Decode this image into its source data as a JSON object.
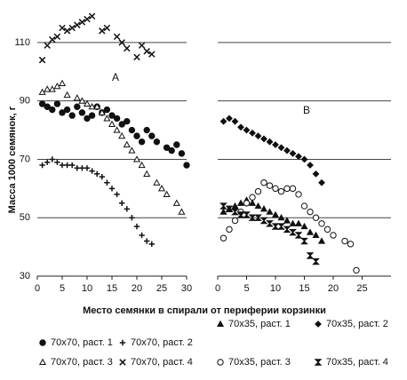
{
  "chart_data": [
    {
      "type": "scatter",
      "panel": "A",
      "y_label": "Масса 1000 семянок, г",
      "x_label": "Место семянки в спирали от периферии корзинки",
      "xlim": [
        0,
        30
      ],
      "xticks": [
        0,
        5,
        10,
        15,
        20,
        25,
        30
      ],
      "ylim": [
        30,
        120
      ],
      "yticks": [
        30,
        50,
        70,
        90,
        110
      ],
      "show_ytick_labels": true,
      "grid": true,
      "series": [
        {
          "name": "70x70, раст. 1",
          "color": "#111",
          "marker": "circle-filled",
          "x": [
            1,
            2,
            3,
            4,
            5,
            6,
            7,
            8,
            9,
            10,
            11,
            12,
            13,
            14,
            15,
            16,
            17,
            18,
            19,
            20,
            21,
            22,
            23,
            24,
            26,
            27,
            28,
            29,
            30
          ],
          "values": [
            89,
            88,
            87,
            89,
            86,
            87,
            85,
            88,
            86,
            84,
            85,
            88,
            86,
            87,
            85,
            84,
            82,
            83,
            80,
            78,
            76,
            80,
            78,
            76,
            74,
            73,
            75,
            72,
            68
          ]
        },
        {
          "name": "70x70, раст. 2",
          "color": "#111",
          "marker": "plus",
          "x": [
            1,
            2,
            3,
            4,
            5,
            6,
            7,
            8,
            9,
            10,
            11,
            12,
            13,
            14,
            15,
            16,
            17,
            18,
            19,
            20,
            21,
            22,
            23
          ],
          "values": [
            68,
            69,
            70,
            69,
            68,
            68,
            68,
            67,
            67,
            67,
            66,
            65,
            64,
            62,
            60,
            58,
            55,
            53,
            50,
            47,
            44,
            42,
            41
          ]
        },
        {
          "name": "70x70, раст. 3",
          "color": "#111",
          "marker": "triangle-open",
          "x": [
            1,
            2,
            3,
            4,
            5,
            6,
            8,
            9,
            10,
            11,
            12,
            13,
            14,
            15,
            16,
            17,
            18,
            19,
            20,
            21,
            22,
            24,
            25,
            26,
            28,
            29
          ],
          "values": [
            93,
            94,
            94,
            95,
            96,
            92,
            91,
            90,
            89,
            88,
            88,
            86,
            84,
            82,
            80,
            78,
            75,
            73,
            70,
            68,
            65,
            62,
            60,
            58,
            55,
            52
          ]
        },
        {
          "name": "70x70, раст. 4",
          "color": "#111",
          "marker": "x",
          "x": [
            1,
            2,
            3,
            4,
            5,
            6,
            7,
            8,
            9,
            10,
            11,
            13,
            14,
            16,
            17,
            18,
            20,
            21,
            22,
            23
          ],
          "values": [
            104,
            109,
            111,
            112,
            115,
            114,
            115,
            116,
            117,
            118,
            119,
            114,
            115,
            112,
            110,
            108,
            105,
            109,
            107,
            106
          ]
        }
      ]
    },
    {
      "type": "scatter",
      "panel": "B",
      "xlim": [
        0,
        30
      ],
      "xticks": [
        0,
        5,
        10,
        15,
        20,
        25
      ],
      "ylim": [
        30,
        120
      ],
      "yticks": [
        30,
        50,
        70,
        90,
        110
      ],
      "show_ytick_labels": false,
      "grid": true,
      "series": [
        {
          "name": "70x35, раст. 1",
          "color": "#111",
          "marker": "triangle-filled",
          "x": [
            1,
            2,
            3,
            4,
            5,
            6,
            7,
            8,
            9,
            10,
            11,
            12,
            13,
            14,
            15,
            16,
            17,
            18
          ],
          "values": [
            52,
            53,
            54,
            55,
            56,
            55,
            54,
            53,
            52,
            51,
            50,
            49,
            48,
            48,
            47,
            45,
            44,
            42
          ]
        },
        {
          "name": "70x35, раст. 2",
          "color": "#111",
          "marker": "diamond-filled",
          "x": [
            1,
            2,
            3,
            4,
            5,
            6,
            7,
            8,
            9,
            10,
            11,
            12,
            13,
            14,
            15,
            16,
            17,
            18
          ],
          "values": [
            83,
            84,
            83,
            81,
            80,
            79,
            78,
            77,
            76,
            75,
            74,
            73,
            72,
            71,
            70,
            68,
            65,
            62
          ]
        },
        {
          "name": "70x35, раст. 3",
          "color": "#111",
          "marker": "circle-open",
          "x": [
            1,
            2,
            3,
            4,
            5,
            6,
            7,
            8,
            9,
            10,
            11,
            12,
            13,
            14,
            15,
            16,
            17,
            18,
            19,
            20,
            22,
            23,
            24
          ],
          "values": [
            43,
            46,
            49,
            52,
            55,
            57,
            59,
            62,
            61,
            60,
            59,
            60,
            60,
            58,
            54,
            52,
            50,
            48,
            46,
            44,
            42,
            41,
            32
          ]
        },
        {
          "name": "70x35, раст. 4",
          "color": "#111",
          "marker": "bowtie",
          "x": [
            1,
            2,
            3,
            4,
            5,
            6,
            7,
            8,
            9,
            10,
            11,
            12,
            13,
            14,
            15,
            16,
            17
          ],
          "values": [
            54,
            53,
            52,
            51,
            51,
            50,
            50,
            49,
            48,
            47,
            47,
            46,
            45,
            44,
            42,
            37,
            35
          ]
        }
      ]
    }
  ]
}
